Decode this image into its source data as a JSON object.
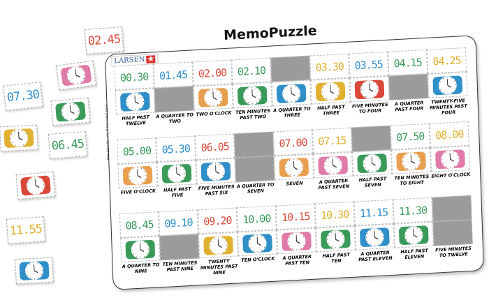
{
  "title": "MemoPuzzle",
  "brand": "LARSEN",
  "side_note": "Each piece fits only at the correct place.",
  "colors": {
    "green": "#3a9a5a",
    "blue": "#2f8fc8",
    "red": "#d9493a",
    "yellow": "#e0b030",
    "orange": "#e8a050",
    "pink": "#e07aa8",
    "gray": "#9b9b9b"
  },
  "rows": [
    {
      "cols": [
        {
          "time": "00.30",
          "time_color": "green",
          "clock": "blue",
          "label": "HALF PAST TWELVE"
        },
        {
          "time": "01.45",
          "time_color": "blue",
          "clock": "gray",
          "label": "A QUARTER TO TWO"
        },
        {
          "time": "02.00",
          "time_color": "red",
          "clock": "orange",
          "label": "TWO O'CLOCK"
        },
        {
          "time": "02.10",
          "time_color": "green",
          "clock": "green",
          "label": "TEN MINUTES PAST TWO"
        },
        {
          "time": "",
          "time_color": "gray",
          "clock": "blue",
          "label": "A QUARTER TO THREE"
        },
        {
          "time": "03.30",
          "time_color": "yellow",
          "clock": "yellow",
          "label": "HALF PAST THREE"
        },
        {
          "time": "03.55",
          "time_color": "blue",
          "clock": "red",
          "label": "FIVE MINUTES TO FOUR"
        },
        {
          "time": "04.15",
          "time_color": "green",
          "clock": "gray",
          "label": "A QUARTER PAST FOUR"
        },
        {
          "time": "04.25",
          "time_color": "yellow",
          "clock": "blue",
          "label": "TWENTY-FIVE MINUTES PAST FOUR"
        }
      ]
    },
    {
      "cols": [
        {
          "time": "05.00",
          "time_color": "green",
          "clock": "orange",
          "label": "FIVE O'CLOCK"
        },
        {
          "time": "05.30",
          "time_color": "blue",
          "clock": "green",
          "label": "HALF PAST FIVE"
        },
        {
          "time": "06.05",
          "time_color": "red",
          "clock": "blue",
          "label": "FIVE MINUTES PAST SIX"
        },
        {
          "time": "",
          "time_color": "gray",
          "clock": "gray",
          "label": "A QUARTER TO SEVEN"
        },
        {
          "time": "07.00",
          "time_color": "red",
          "clock": "orange",
          "label": "SEVEN"
        },
        {
          "time": "07.15",
          "time_color": "yellow",
          "clock": "pink",
          "label": "A QUARTER PAST SEVEN"
        },
        {
          "time": "",
          "time_color": "gray",
          "clock": "green",
          "label": "HALF PAST SEVEN"
        },
        {
          "time": "07.50",
          "time_color": "green",
          "clock": "orange",
          "label": "TEN MINUTES TO EIGHT"
        },
        {
          "time": "08.00",
          "time_color": "yellow",
          "clock": "pink",
          "label": "EIGHT O'CLOCK"
        }
      ]
    },
    {
      "cols": [
        {
          "time": "08.45",
          "time_color": "green",
          "clock": "green",
          "label": "A QUARTER TO NINE"
        },
        {
          "time": "09.10",
          "time_color": "blue",
          "clock": "gray",
          "label": "TEN MINUTES PAST NINE"
        },
        {
          "time": "09.20",
          "time_color": "red",
          "clock": "yellow",
          "label": "TWENTY MINUTES PAST NINE"
        },
        {
          "time": "10.00",
          "time_color": "green",
          "clock": "blue",
          "label": "TEN O'CLOCK"
        },
        {
          "time": "10.15",
          "time_color": "red",
          "clock": "pink",
          "label": "A QUARTER PAST TEN"
        },
        {
          "time": "10.30",
          "time_color": "yellow",
          "clock": "green",
          "label": "HALF PAST TEN"
        },
        {
          "time": "11.15",
          "time_color": "blue",
          "clock": "blue",
          "label": "A QUARTER PAST ELEVEN"
        },
        {
          "time": "11.30",
          "time_color": "green",
          "clock": "green",
          "label": "HALF PAST ELEVEN"
        },
        {
          "time": "",
          "time_color": "gray",
          "clock": "gray",
          "label": "FIVE MINUTES TO TWELVE"
        }
      ]
    }
  ],
  "loose_pieces": [
    {
      "time": "02.45",
      "color": "red"
    },
    {
      "clock": "pink"
    },
    {
      "time": "07.30",
      "color": "blue"
    },
    {
      "clock": "green"
    },
    {
      "clock": "yellow"
    },
    {
      "time": "06.45",
      "color": "green"
    },
    {
      "clock": "red"
    },
    {
      "time": "11.55",
      "color": "yellow"
    },
    {
      "clock": "blue"
    }
  ]
}
